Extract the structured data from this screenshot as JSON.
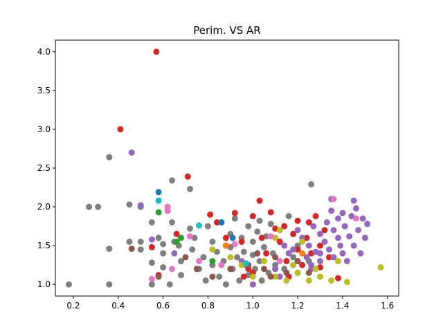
{
  "chart_data": {
    "type": "scatter",
    "title": "Perim. VS AR",
    "xlabel": "",
    "ylabel": "",
    "xlim": [
      0.12,
      1.65
    ],
    "ylim": [
      0.85,
      4.15
    ],
    "xticks": [
      "0.2",
      "0.4",
      "0.6",
      "0.8",
      "1.0",
      "1.2",
      "1.4",
      "1.6"
    ],
    "yticks": [
      "1.0",
      "1.5",
      "2.0",
      "2.5",
      "3.0",
      "3.5",
      "4.0"
    ],
    "grid": false,
    "legend": "none",
    "series": [
      {
        "color": "#7f7f7f",
        "points": [
          [
            0.18,
            1.0
          ],
          [
            0.27,
            2.0
          ],
          [
            0.31,
            2.0
          ],
          [
            0.36,
            2.64
          ],
          [
            0.36,
            1.46
          ],
          [
            0.36,
            1.0
          ],
          [
            0.45,
            2.03
          ],
          [
            0.45,
            1.55
          ],
          [
            0.5,
            2.0
          ],
          [
            0.5,
            1.55
          ],
          [
            0.5,
            1.45
          ],
          [
            0.55,
            1.8
          ],
          [
            0.55,
            1.28
          ],
          [
            0.55,
            1.0
          ],
          [
            0.58,
            1.6
          ],
          [
            0.6,
            1.52
          ],
          [
            0.6,
            1.4
          ],
          [
            0.6,
            1.22
          ],
          [
            0.63,
            1.0
          ],
          [
            0.64,
            2.34
          ],
          [
            0.64,
            1.8
          ],
          [
            0.65,
            1.55
          ],
          [
            0.67,
            1.5
          ],
          [
            0.68,
            1.3
          ],
          [
            0.68,
            1.12
          ],
          [
            0.72,
            2.23
          ],
          [
            0.72,
            1.72
          ],
          [
            0.73,
            1.45
          ],
          [
            0.74,
            1.6
          ],
          [
            0.76,
            1.2
          ],
          [
            0.78,
            1.35
          ],
          [
            0.79,
            1.05
          ],
          [
            0.8,
            1.75
          ],
          [
            0.82,
            1.55
          ],
          [
            0.82,
            1.25
          ],
          [
            0.84,
            1.42
          ],
          [
            0.85,
            1.1
          ],
          [
            0.86,
            1.8
          ],
          [
            0.87,
            1.3
          ],
          [
            0.88,
            1.0
          ],
          [
            0.9,
            1.65
          ],
          [
            0.9,
            1.48
          ],
          [
            0.91,
            1.2
          ],
          [
            0.92,
            1.85
          ],
          [
            0.93,
            1.35
          ],
          [
            0.94,
            1.05
          ],
          [
            0.95,
            1.6
          ],
          [
            0.96,
            1.42
          ],
          [
            0.97,
            1.25
          ],
          [
            0.98,
            1.75
          ],
          [
            0.98,
            1.12
          ],
          [
            1.0,
            1.55
          ],
          [
            1.0,
            1.38
          ],
          [
            1.01,
            1.2
          ],
          [
            1.02,
            1.68
          ],
          [
            1.03,
            1.82
          ],
          [
            1.03,
            1.3
          ],
          [
            1.04,
            1.05
          ],
          [
            1.05,
            1.48
          ],
          [
            1.06,
            1.62
          ],
          [
            1.07,
            1.15
          ],
          [
            1.08,
            1.78
          ],
          [
            1.09,
            1.4
          ],
          [
            1.1,
            1.25
          ],
          [
            1.12,
            1.55
          ],
          [
            1.14,
            1.2
          ],
          [
            1.16,
            1.88
          ],
          [
            1.18,
            1.35
          ],
          [
            1.2,
            1.5
          ],
          [
            1.26,
            2.29
          ],
          [
            1.25,
            1.3
          ]
        ]
      },
      {
        "color": "#d62728",
        "points": [
          [
            0.41,
            3.0
          ],
          [
            0.57,
            4.0
          ],
          [
            0.55,
            1.48
          ],
          [
            0.58,
            1.12
          ],
          [
            0.71,
            2.39
          ],
          [
            0.66,
            1.65
          ],
          [
            0.81,
            1.9
          ],
          [
            0.84,
            1.8
          ],
          [
            0.88,
            1.6
          ],
          [
            0.92,
            1.92
          ],
          [
            0.95,
            1.55
          ],
          [
            0.98,
            1.2
          ],
          [
            1.0,
            1.88
          ],
          [
            1.03,
            2.08
          ],
          [
            1.04,
            1.6
          ],
          [
            1.06,
            1.4
          ],
          [
            1.08,
            1.93
          ],
          [
            1.1,
            1.72
          ],
          [
            1.12,
            1.55
          ],
          [
            1.14,
            1.75
          ],
          [
            1.15,
            1.3
          ],
          [
            1.16,
            1.1
          ],
          [
            1.18,
            1.65
          ],
          [
            1.2,
            1.45
          ],
          [
            1.2,
            1.82
          ],
          [
            1.22,
            1.25
          ],
          [
            1.24,
            1.6
          ],
          [
            1.25,
            1.8
          ],
          [
            1.26,
            1.4
          ],
          [
            1.28,
            1.88
          ],
          [
            1.3,
            1.5
          ],
          [
            1.3,
            1.22
          ],
          [
            1.32,
            1.7
          ],
          [
            1.34,
            1.35
          ],
          [
            1.38,
            1.08
          ],
          [
            1.1,
            1.2
          ],
          [
            1.0,
            1.15
          ],
          [
            0.96,
            1.1
          ]
        ]
      },
      {
        "color": "#9467bd",
        "points": [
          [
            0.46,
            2.7
          ],
          [
            0.5,
            2.02
          ],
          [
            0.55,
            1.58
          ],
          [
            0.65,
            1.4
          ],
          [
            0.95,
            1.3
          ],
          [
            1.0,
            1.0
          ],
          [
            1.1,
            1.2
          ],
          [
            1.14,
            1.5
          ],
          [
            1.18,
            1.45
          ],
          [
            1.2,
            1.3
          ],
          [
            1.22,
            1.6
          ],
          [
            1.24,
            1.35
          ],
          [
            1.25,
            1.5
          ],
          [
            1.26,
            1.2
          ],
          [
            1.27,
            1.75
          ],
          [
            1.28,
            1.42
          ],
          [
            1.3,
            1.65
          ],
          [
            1.3,
            1.3
          ],
          [
            1.32,
            1.55
          ],
          [
            1.33,
            1.8
          ],
          [
            1.34,
            1.45
          ],
          [
            1.35,
            2.1
          ],
          [
            1.35,
            1.95
          ],
          [
            1.36,
            1.7
          ],
          [
            1.36,
            1.35
          ],
          [
            1.38,
            1.6
          ],
          [
            1.38,
            1.85
          ],
          [
            1.39,
            1.5
          ],
          [
            1.4,
            1.92
          ],
          [
            1.4,
            1.4
          ],
          [
            1.41,
            1.75
          ],
          [
            1.42,
            1.3
          ],
          [
            1.43,
            1.62
          ],
          [
            1.44,
            1.88
          ],
          [
            1.45,
            1.5
          ],
          [
            1.45,
            2.08
          ],
          [
            1.46,
            1.98
          ],
          [
            1.47,
            1.7
          ],
          [
            1.48,
            1.4
          ],
          [
            1.49,
            1.85
          ],
          [
            1.5,
            1.6
          ],
          [
            1.51,
            1.78
          ],
          [
            1.2,
            1.7
          ],
          [
            1.16,
            1.4
          ],
          [
            1.12,
            1.1
          ],
          [
            1.26,
            1.25
          ],
          [
            1.3,
            1.4
          ]
        ]
      },
      {
        "color": "#bcbd22",
        "points": [
          [
            0.82,
            1.45
          ],
          [
            0.9,
            1.35
          ],
          [
            0.95,
            1.25
          ],
          [
            1.0,
            1.1
          ],
          [
            1.05,
            1.3
          ],
          [
            1.1,
            1.1
          ],
          [
            1.12,
            1.7
          ],
          [
            1.15,
            1.05
          ],
          [
            1.2,
            1.15
          ],
          [
            1.22,
            1.55
          ],
          [
            1.25,
            1.05
          ],
          [
            1.28,
            1.2
          ],
          [
            1.3,
            1.1
          ],
          [
            1.35,
            1.05
          ],
          [
            1.38,
            1.3
          ],
          [
            1.42,
            1.03
          ],
          [
            1.57,
            1.22
          ],
          [
            1.1,
            1.6
          ],
          [
            1.18,
            1.25
          ]
        ]
      },
      {
        "color": "#8c564b",
        "points": [
          [
            0.46,
            1.46
          ],
          [
            0.58,
            1.1
          ],
          [
            0.7,
            1.35
          ],
          [
            0.75,
            1.2
          ],
          [
            0.82,
            1.1
          ],
          [
            0.9,
            1.2
          ],
          [
            0.98,
            1.25
          ],
          [
            1.02,
            1.4
          ],
          [
            1.05,
            1.2
          ],
          [
            1.08,
            1.1
          ],
          [
            1.1,
            1.35
          ],
          [
            1.15,
            1.15
          ],
          [
            1.2,
            1.3
          ],
          [
            1.25,
            1.15
          ]
        ]
      },
      {
        "color": "#e377c2",
        "points": [
          [
            0.55,
            1.07
          ],
          [
            0.62,
            2.0
          ],
          [
            0.62,
            1.95
          ],
          [
            0.64,
            1.2
          ],
          [
            0.72,
            1.62
          ],
          [
            0.76,
            1.3
          ],
          [
            0.86,
            1.25
          ],
          [
            0.92,
            1.52
          ],
          [
            1.08,
            1.62
          ],
          [
            1.12,
            1.3
          ],
          [
            1.36,
            2.1
          ],
          [
            1.46,
            1.85
          ]
        ]
      },
      {
        "color": "#17becf",
        "points": [
          [
            0.58,
            2.08
          ],
          [
            0.76,
            1.76
          ],
          [
            0.97,
            1.27
          ]
        ]
      },
      {
        "color": "#1f77b4",
        "points": [
          [
            0.58,
            2.19
          ],
          [
            0.86,
            1.8
          ],
          [
            0.91,
            1.6
          ]
        ]
      },
      {
        "color": "#2ca02c",
        "points": [
          [
            0.58,
            1.93
          ],
          [
            0.66,
            1.55
          ],
          [
            0.68,
            1.6
          ],
          [
            0.82,
            1.3
          ]
        ]
      },
      {
        "color": "#ff7f0e",
        "points": [
          [
            0.88,
            1.5
          ],
          [
            1.22,
            1.4
          ]
        ]
      }
    ]
  }
}
